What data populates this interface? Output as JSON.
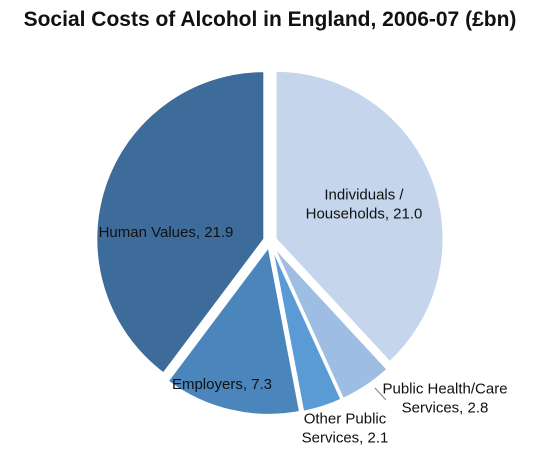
{
  "chart_data": {
    "type": "pie",
    "title": "Social Costs of Alcohol in England, 2006-07 (£bn)",
    "categories": [
      "Individuals / Households",
      "Public Health/Care Services",
      "Other Public Services",
      "Employers",
      "Human Values"
    ],
    "values": [
      21.0,
      2.8,
      2.1,
      7.3,
      21.9
    ],
    "labels": [
      [
        "Individuals /",
        "Households, 21.0"
      ],
      [
        "Public Health/Care",
        "Services, 2.8"
      ],
      [
        "Other Public",
        "Services, 2.1"
      ],
      [
        "Employers, 7.3"
      ],
      [
        "Human Values, 21.9"
      ]
    ],
    "colors": [
      "#c4d5ec",
      "#9dbde3",
      "#5a9bd6",
      "#4a85bb",
      "#3e6c9a"
    ],
    "start_angle": "12 o'clock",
    "direction": "clockwise",
    "exploded": "all slices",
    "legend": "none"
  }
}
